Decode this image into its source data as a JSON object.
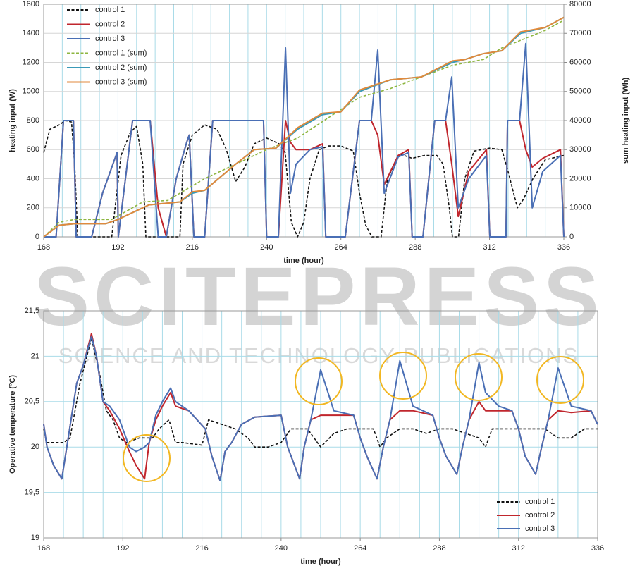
{
  "watermark": {
    "title": "SCITEPRESS",
    "subtitle": "SCIENCE AND TECHNOLOGY PUBLICATIONS"
  },
  "chart_data": [
    {
      "type": "line",
      "xlabel": "time (hour)",
      "ylabel": "heating input (W)",
      "y2label": "sum heating input (Wh)",
      "xlim": [
        168,
        336
      ],
      "xticks": [
        168,
        192,
        216,
        240,
        264,
        288,
        312,
        336
      ],
      "xgrid": [
        168,
        174,
        180,
        186,
        192,
        198,
        204,
        210,
        216,
        222,
        228,
        234,
        240,
        246,
        252,
        258,
        264,
        270,
        276,
        282,
        288,
        294,
        300,
        306,
        312,
        318,
        324,
        330,
        336
      ],
      "ylim": [
        0,
        1600
      ],
      "yticks": [
        0,
        200,
        400,
        600,
        800,
        1000,
        1200,
        1400,
        1600
      ],
      "y2lim": [
        0,
        80000
      ],
      "y2ticks": [
        0,
        10000,
        20000,
        30000,
        40000,
        50000,
        60000,
        70000,
        80000
      ],
      "grid": true,
      "legend": "upper left",
      "series": [
        {
          "name": "control 1",
          "color": "#111111",
          "style": "dashed",
          "x": [
            168,
            170,
            173,
            175,
            177,
            178,
            179,
            190,
            193,
            196,
            198,
            200,
            201,
            212,
            213,
            216,
            220,
            224,
            227,
            230,
            233,
            236,
            240,
            244,
            246,
            248,
            250,
            252,
            254,
            257,
            260,
            264,
            268,
            270,
            272,
            274,
            277,
            279,
            283,
            287,
            291,
            295,
            297,
            299,
            300,
            302,
            304,
            307,
            312,
            316,
            318,
            321,
            323,
            326,
            330,
            336
          ],
          "values": [
            580,
            740,
            770,
            800,
            790,
            500,
            0,
            0,
            560,
            720,
            760,
            500,
            0,
            0,
            500,
            700,
            770,
            740,
            600,
            380,
            480,
            640,
            680,
            640,
            580,
            100,
            0,
            100,
            400,
            600,
            625,
            625,
            590,
            300,
            80,
            0,
            0,
            400,
            570,
            540,
            560,
            560,
            500,
            200,
            0,
            0,
            400,
            590,
            610,
            600,
            450,
            200,
            260,
            400,
            530,
            560
          ]
        },
        {
          "name": "control 2",
          "color": "#c0262d",
          "style": "solid",
          "x": [
            168,
            172,
            174.4,
            177.6,
            178.5,
            183.5,
            187,
            191.7,
            192.1,
            196.7,
            202.4,
            205,
            207.6,
            210.8,
            214.2,
            215,
            216.5,
            220,
            222.6,
            239,
            240,
            243.8,
            246.1,
            247.7,
            249.5,
            254,
            258.1,
            259.1,
            265.4,
            270,
            273.8,
            275.9,
            278,
            282.5,
            285.9,
            287,
            290.5,
            294.3,
            297.8,
            299.8,
            301.9,
            305.3,
            311,
            312.1,
            317.3,
            317.8,
            321.7,
            323.7,
            325.8,
            329.2,
            334.9,
            336
          ],
          "values": [
            0,
            0,
            800,
            800,
            0,
            0,
            300,
            580,
            0,
            800,
            800,
            200,
            0,
            400,
            650,
            700,
            0,
            0,
            800,
            800,
            0,
            0,
            800,
            650,
            600,
            600,
            640,
            0,
            0,
            800,
            800,
            700,
            360,
            560,
            600,
            0,
            0,
            800,
            800,
            500,
            140,
            450,
            600,
            0,
            0,
            800,
            800,
            600,
            480,
            540,
            600,
            0
          ]
        },
        {
          "name": "control 3",
          "color": "#4a6fb5",
          "style": "solid",
          "x": [
            168,
            172,
            174.4,
            177.6,
            178.5,
            183.5,
            187,
            191.7,
            192.1,
            196.7,
            202.4,
            205,
            207.6,
            210.8,
            214.2,
            215,
            216.5,
            220,
            222.6,
            239,
            240,
            243.8,
            246.1,
            247.7,
            249.5,
            254,
            258.1,
            259.1,
            265.4,
            270,
            273.8,
            275.9,
            278,
            282.5,
            285.9,
            287,
            290.5,
            294.3,
            297.8,
            299.8,
            301.9,
            305.3,
            311,
            312.1,
            317.3,
            317.8,
            321.7,
            323.7,
            325.8,
            329.2,
            334.9,
            336
          ],
          "values": [
            0,
            0,
            800,
            800,
            0,
            0,
            300,
            580,
            0,
            800,
            800,
            0,
            0,
            400,
            650,
            700,
            0,
            0,
            800,
            800,
            0,
            0,
            1300,
            300,
            500,
            600,
            620,
            0,
            0,
            800,
            800,
            1285,
            300,
            550,
            580,
            0,
            0,
            800,
            800,
            1100,
            200,
            400,
            560,
            0,
            0,
            800,
            800,
            1330,
            200,
            450,
            560,
            0
          ]
        },
        {
          "name": "control 1 (sum)",
          "color": "#8db640",
          "style": "dashed",
          "axis": "y2",
          "x": [
            168,
            173,
            178,
            190,
            200,
            208,
            220,
            230,
            240,
            250,
            260,
            270,
            280,
            290,
            300,
            310,
            316,
            330,
            336
          ],
          "values": [
            0,
            5000,
            6000,
            6000,
            12000,
            12500,
            20000,
            25000,
            30000,
            34000,
            41000,
            48000,
            51000,
            55000,
            59000,
            61000,
            65000,
            71000,
            74500
          ]
        },
        {
          "name": "control 2 (sum)",
          "color": "#3a9ab8",
          "style": "solid",
          "axis": "y2",
          "x": [
            168,
            173,
            178,
            188,
            192,
            202,
            212,
            216,
            220,
            230,
            236,
            243,
            250,
            258,
            264,
            270,
            280,
            290,
            300,
            304,
            310,
            316,
            322,
            330,
            336
          ],
          "values": [
            0,
            4000,
            4500,
            4500,
            6000,
            11000,
            12000,
            15000,
            16000,
            25000,
            30000,
            30500,
            37000,
            42000,
            43000,
            50000,
            54000,
            55000,
            60000,
            61000,
            63000,
            64000,
            70000,
            72000,
            75500
          ]
        },
        {
          "name": "control 3 (sum)",
          "color": "#e08a3c",
          "style": "solid",
          "axis": "y2",
          "x": [
            168,
            173,
            178,
            188,
            192,
            202,
            212,
            216,
            220,
            230,
            236,
            243,
            250,
            258,
            264,
            270,
            280,
            290,
            300,
            304,
            310,
            316,
            322,
            330,
            336
          ],
          "values": [
            0,
            4000,
            4500,
            4500,
            6000,
            11000,
            12000,
            15500,
            16000,
            25000,
            30000,
            30500,
            37500,
            42500,
            43000,
            50500,
            54000,
            55000,
            60500,
            61000,
            63000,
            64000,
            70500,
            72000,
            75500
          ]
        }
      ]
    },
    {
      "type": "line",
      "xlabel": "time (hour)",
      "ylabel": "Operative temperature (°C)",
      "xlim": [
        168,
        336
      ],
      "xticks": [
        168,
        192,
        216,
        240,
        264,
        288,
        312,
        336
      ],
      "xgrid": [
        168,
        174,
        180,
        186,
        192,
        198,
        204,
        210,
        216,
        222,
        228,
        234,
        240,
        246,
        252,
        258,
        264,
        270,
        276,
        282,
        288,
        294,
        300,
        306,
        312,
        318,
        324,
        330,
        336
      ],
      "ylim": [
        19,
        21.5
      ],
      "yticks": [
        19,
        {
          "value": 19.5,
          "label": "19,5"
        },
        20,
        {
          "value": 20.5,
          "label": "20,5"
        },
        21,
        {
          "value": 21.5,
          "label": "21,5"
        }
      ],
      "grid": true,
      "legend": "lower right",
      "series": [
        {
          "name": "control 1",
          "color": "#111111",
          "style": "dashed",
          "x": [
            168,
            169,
            174,
            176,
            179,
            182.5,
            185,
            187,
            189,
            191,
            193,
            197,
            201,
            203,
            206,
            208,
            210,
            214,
            216,
            218,
            222,
            226,
            230,
            232,
            236,
            240,
            243,
            248,
            252,
            256,
            260,
            264,
            268,
            270,
            272,
            276,
            280,
            284,
            288,
            292,
            296,
            300,
            302,
            304,
            308,
            312,
            316,
            320,
            324,
            328,
            332,
            336
          ],
          "values": [
            20.2,
            20.05,
            20.05,
            20.1,
            20.7,
            21.2,
            20.8,
            20.4,
            20.3,
            20.1,
            20.05,
            20.1,
            20.1,
            20.2,
            20.3,
            20.05,
            20.05,
            20.03,
            20.02,
            20.3,
            20.25,
            20.2,
            20.1,
            20.0,
            20.0,
            20.05,
            20.2,
            20.2,
            20.0,
            20.15,
            20.2,
            20.2,
            20.2,
            20.0,
            20.1,
            20.2,
            20.2,
            20.15,
            20.2,
            20.2,
            20.15,
            20.1,
            20.0,
            20.2,
            20.2,
            20.2,
            20.2,
            20.2,
            20.1,
            20.1,
            20.2,
            20.2
          ]
        },
        {
          "name": "control 2",
          "color": "#c0262d",
          "style": "solid",
          "x": [
            168,
            169,
            171,
            173.5,
            175,
            178,
            180,
            182.5,
            184,
            186,
            188,
            191,
            194,
            196,
            198.6,
            200,
            202,
            204,
            206.5,
            208,
            212,
            217,
            219,
            221.5,
            223,
            225,
            228,
            232,
            240,
            242,
            245.6,
            247,
            249,
            252,
            256,
            262,
            264,
            266,
            269.1,
            271,
            273,
            276,
            280,
            286,
            288,
            290,
            293.3,
            295,
            297,
            300,
            302,
            306,
            310,
            312,
            314,
            317.2,
            319,
            321,
            324,
            328,
            334,
            336
          ],
          "values": [
            20.25,
            20.0,
            19.8,
            19.65,
            20.0,
            20.7,
            20.9,
            21.25,
            21.0,
            20.5,
            20.4,
            20.2,
            19.95,
            19.8,
            19.65,
            20.05,
            20.3,
            20.45,
            20.6,
            20.45,
            20.4,
            20.2,
            19.9,
            19.63,
            19.95,
            20.05,
            20.25,
            20.33,
            20.35,
            20.0,
            19.65,
            20.0,
            20.3,
            20.35,
            20.35,
            20.35,
            20.1,
            19.9,
            19.65,
            20.0,
            20.3,
            20.4,
            20.4,
            20.35,
            20.1,
            19.9,
            19.7,
            20.0,
            20.3,
            20.5,
            20.4,
            20.4,
            20.4,
            20.2,
            19.9,
            19.7,
            20.0,
            20.3,
            20.4,
            20.38,
            20.4,
            20.25
          ]
        },
        {
          "name": "control 3",
          "color": "#4a6fb5",
          "style": "solid",
          "x": [
            168,
            169,
            171,
            173.5,
            175,
            178,
            180,
            182.5,
            184,
            186,
            188,
            191,
            194,
            196,
            198.6,
            200,
            202,
            204,
            206.5,
            208,
            212,
            217,
            219,
            221.5,
            223,
            225,
            228,
            232,
            240,
            242,
            245.6,
            247,
            249,
            252,
            256,
            262,
            264,
            266,
            269.1,
            271,
            273,
            276,
            280,
            286,
            288,
            290,
            293.3,
            295,
            297,
            300,
            302,
            306,
            310,
            312,
            314,
            317.2,
            319,
            321,
            324,
            328,
            334,
            336
          ],
          "values": [
            20.25,
            20.0,
            19.8,
            19.65,
            20.0,
            20.7,
            20.9,
            21.22,
            21.0,
            20.5,
            20.45,
            20.3,
            20.0,
            19.95,
            20.0,
            20.05,
            20.35,
            20.5,
            20.65,
            20.5,
            20.4,
            20.2,
            19.9,
            19.63,
            19.95,
            20.05,
            20.25,
            20.33,
            20.35,
            20.0,
            19.65,
            20.0,
            20.3,
            20.85,
            20.4,
            20.35,
            20.1,
            19.9,
            19.65,
            20.0,
            20.3,
            20.95,
            20.45,
            20.35,
            20.1,
            19.9,
            19.7,
            20.0,
            20.3,
            20.93,
            20.6,
            20.45,
            20.4,
            20.2,
            19.9,
            19.7,
            20.0,
            20.3,
            20.87,
            20.45,
            20.4,
            20.25
          ]
        }
      ]
    }
  ]
}
